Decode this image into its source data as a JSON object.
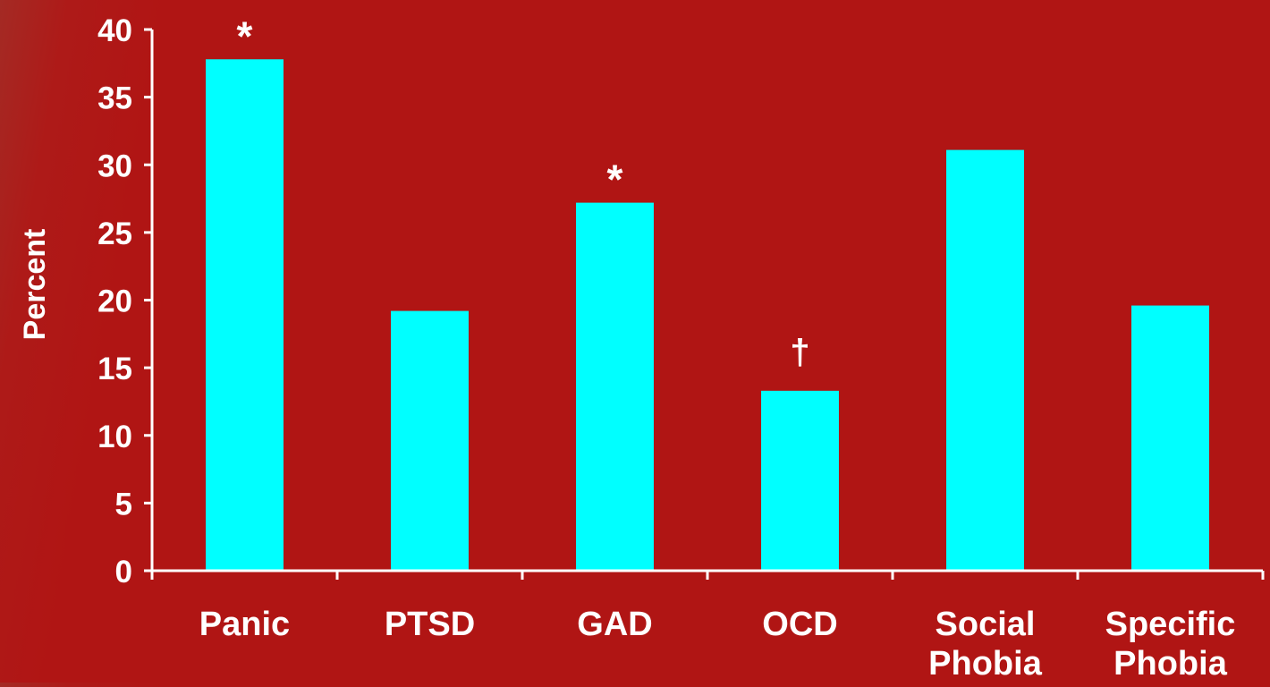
{
  "chart_data": {
    "type": "bar",
    "title": "",
    "xlabel": "",
    "ylabel": "Percent",
    "ylim": [
      0,
      40
    ],
    "yticks": [
      "0",
      "5",
      "10",
      "15",
      "20",
      "25",
      "30",
      "35",
      "40"
    ],
    "grid": false,
    "legend": "none",
    "categories": [
      [
        "Panic"
      ],
      [
        "PTSD"
      ],
      [
        "GAD"
      ],
      [
        "OCD"
      ],
      [
        "Social",
        "Phobia"
      ],
      [
        "Specific",
        "Phobia"
      ]
    ],
    "values": [
      37.8,
      19.2,
      27.2,
      13.3,
      31.1,
      19.6
    ],
    "annotations": [
      "*",
      "",
      "*",
      "†",
      "",
      ""
    ],
    "colors": {
      "bar": "#00ffff",
      "axis": "#ffffff",
      "text": "#ffffff",
      "background": "#b01514"
    }
  }
}
